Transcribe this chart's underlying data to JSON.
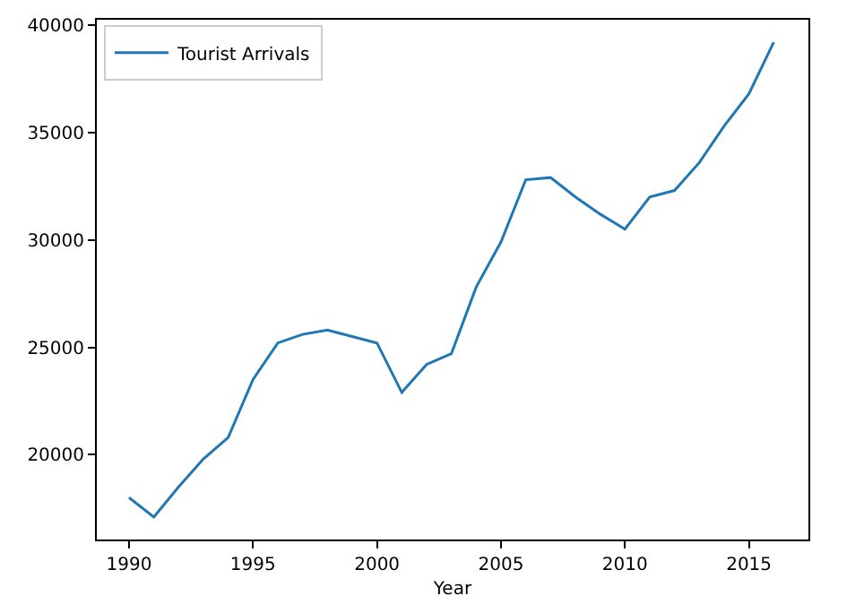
{
  "chart_data": {
    "type": "line",
    "xlabel": "Year",
    "x": [
      1990,
      1991,
      1992,
      1993,
      1994,
      1995,
      1996,
      1997,
      1998,
      1999,
      2000,
      2001,
      2002,
      2003,
      2004,
      2005,
      2006,
      2007,
      2008,
      2009,
      2010,
      2011,
      2012,
      2013,
      2014,
      2015,
      2016
    ],
    "series": [
      {
        "name": "Tourist Arrivals",
        "color": "#1f77b4",
        "values": [
          18000,
          17100,
          18500,
          19800,
          20800,
          23500,
          25200,
          25600,
          25800,
          25500,
          25200,
          22900,
          24200,
          24700,
          27800,
          29900,
          32800,
          32900,
          32000,
          31200,
          30500,
          32000,
          32300,
          33600,
          35300,
          36800,
          39200
        ]
      }
    ],
    "xlim": [
      1988.7,
      2017.4
    ],
    "ylim": [
      16050,
      40250
    ],
    "xticks": [
      1990,
      1995,
      2000,
      2005,
      2010,
      2015
    ],
    "yticks": [
      20000,
      25000,
      30000,
      35000,
      40000
    ],
    "legend": "top left",
    "marker": "none",
    "line_style": "solid"
  }
}
